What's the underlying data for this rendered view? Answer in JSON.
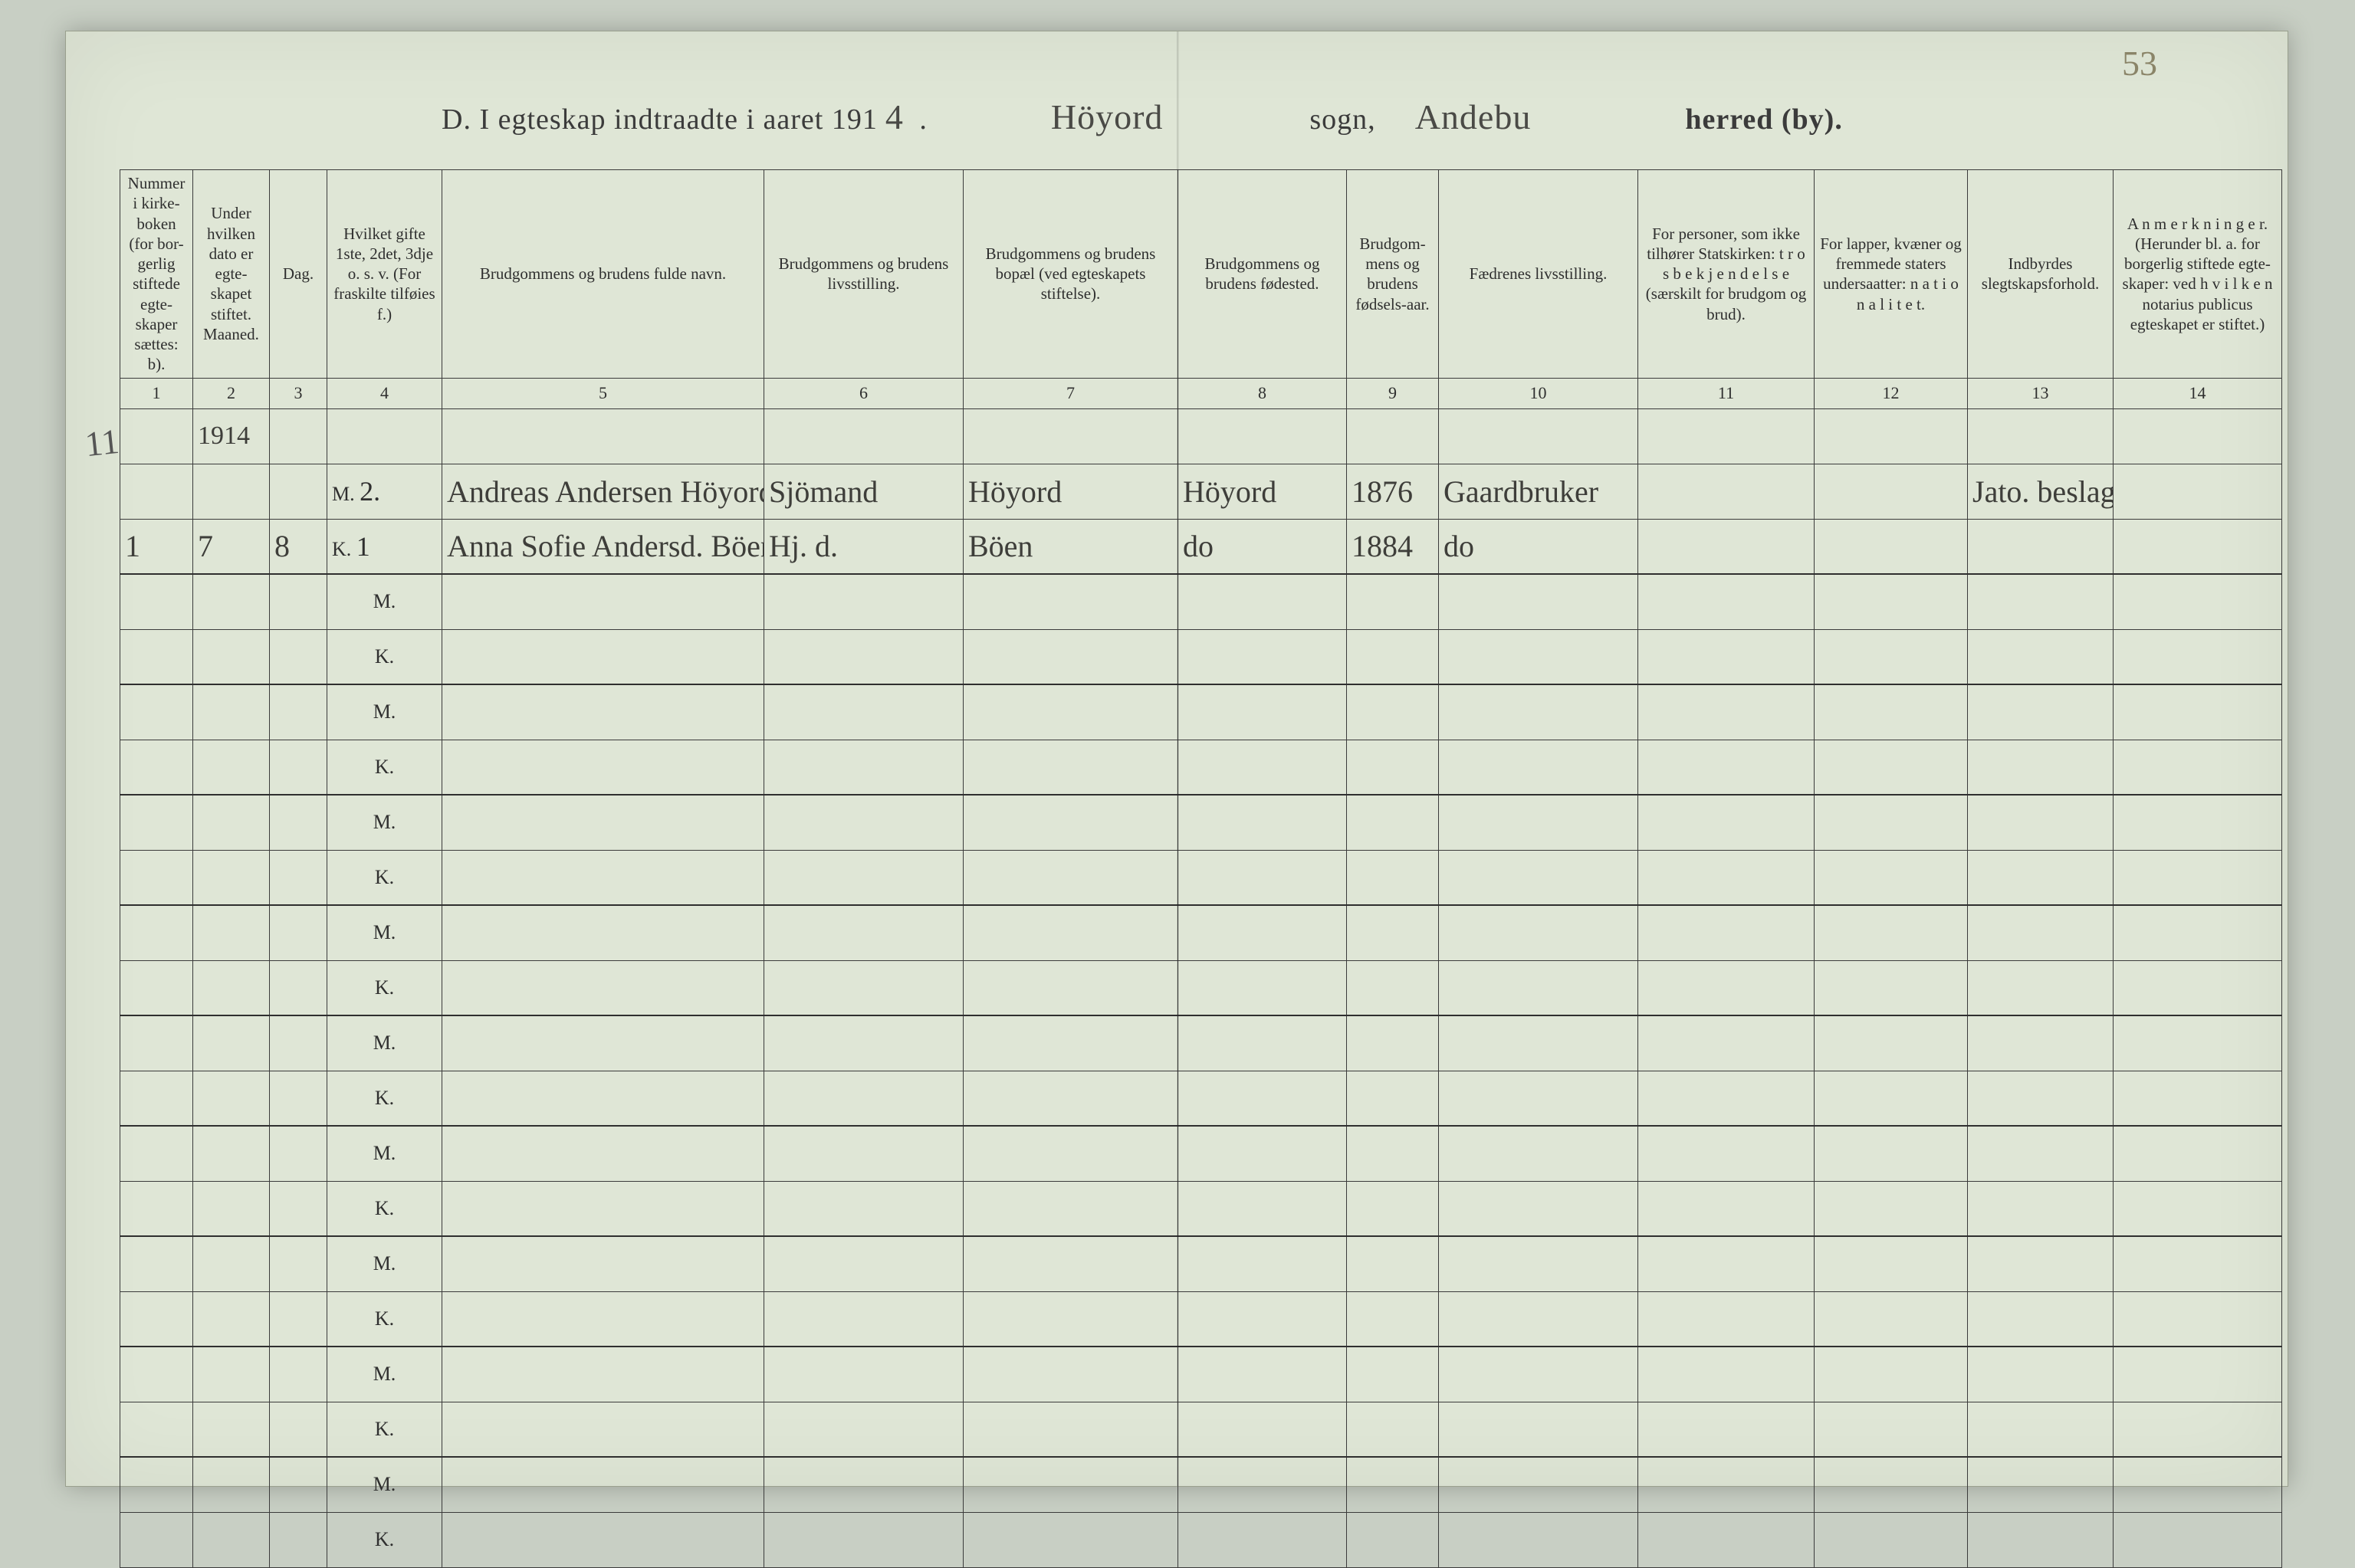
{
  "page_number_handwritten": "53",
  "title": {
    "prefix": "D.   I egteskap indtraadte i aaret 191",
    "year_suffix_hand": "4",
    "period": " .",
    "sogn_hand": "Höyord",
    "sogn_label": "sogn,",
    "herred_hand": "Andebu",
    "herred_label": "herred (by)."
  },
  "columns": [
    {
      "n": "1",
      "label": "Nummer i kirke-boken (for bor-gerlig stiftede egte-skaper sættes: b)."
    },
    {
      "n": "2",
      "label": "Under hvilken dato er egte-skapet stiftet.\nMaaned."
    },
    {
      "n": "3",
      "label": "Dag."
    },
    {
      "n": "4",
      "label": "Hvilket gifte 1ste, 2det, 3dje o. s. v. (For fraskilte tilføies f.)"
    },
    {
      "n": "5",
      "label": "Brudgommens og brudens fulde navn."
    },
    {
      "n": "6",
      "label": "Brudgommens og brudens livsstilling."
    },
    {
      "n": "7",
      "label": "Brudgommens og brudens bopæl (ved egteskapets stiftelse)."
    },
    {
      "n": "8",
      "label": "Brudgommens og brudens fødested."
    },
    {
      "n": "9",
      "label": "Brudgom-mens og brudens fødsels-aar."
    },
    {
      "n": "10",
      "label": "Fædrenes livsstilling."
    },
    {
      "n": "11",
      "label": "For personer, som ikke tilhører Statskirken: t r o s b e k j e n d e l s e (særskilt for brudgom og brud)."
    },
    {
      "n": "12",
      "label": "For lapper, kvæner og fremmede staters undersaatter: n a t i o n a l i t e t."
    },
    {
      "n": "13",
      "label": "Indbyrdes slegtskapsforhold."
    },
    {
      "n": "14",
      "label": "A n m e r k n i n g e r. (Herunder bl. a. for borgerlig stiftede egte-skaper: ved h v i l k e n  notarius publicus egteskapet er stiftet.)"
    }
  ],
  "year_cell": "1914",
  "entries": [
    {
      "number": "1",
      "month": "7",
      "day": "8",
      "groom": {
        "mk": "M.",
        "gifte": "2.",
        "name": "Andreas Andersen Höyord",
        "stilling": "Sjömand",
        "bopæl": "Höyord",
        "fodested": "Höyord",
        "aar": "1876",
        "far": "Gaardbruker",
        "col11": "",
        "col12": "",
        "col13": "Jato. beslagtet",
        "col14": ""
      },
      "bride": {
        "mk": "K.",
        "gifte": "1",
        "name": "Anna Sofie Andersd. Böen",
        "stilling": "Hj. d.",
        "bopæl": "Böen",
        "fodested": "do",
        "aar": "1884",
        "far": "do",
        "col11": "",
        "col12": "",
        "col13": "",
        "col14": ""
      }
    }
  ],
  "margin_note": "11",
  "empty_pairs": 9,
  "colors": {
    "page_bg": "#dfe6d6",
    "outer_bg": "#c8cfc4",
    "rule": "#3b3b3b",
    "ink_print": "#2f2f2f",
    "ink_hand": "#3e3e3a"
  }
}
